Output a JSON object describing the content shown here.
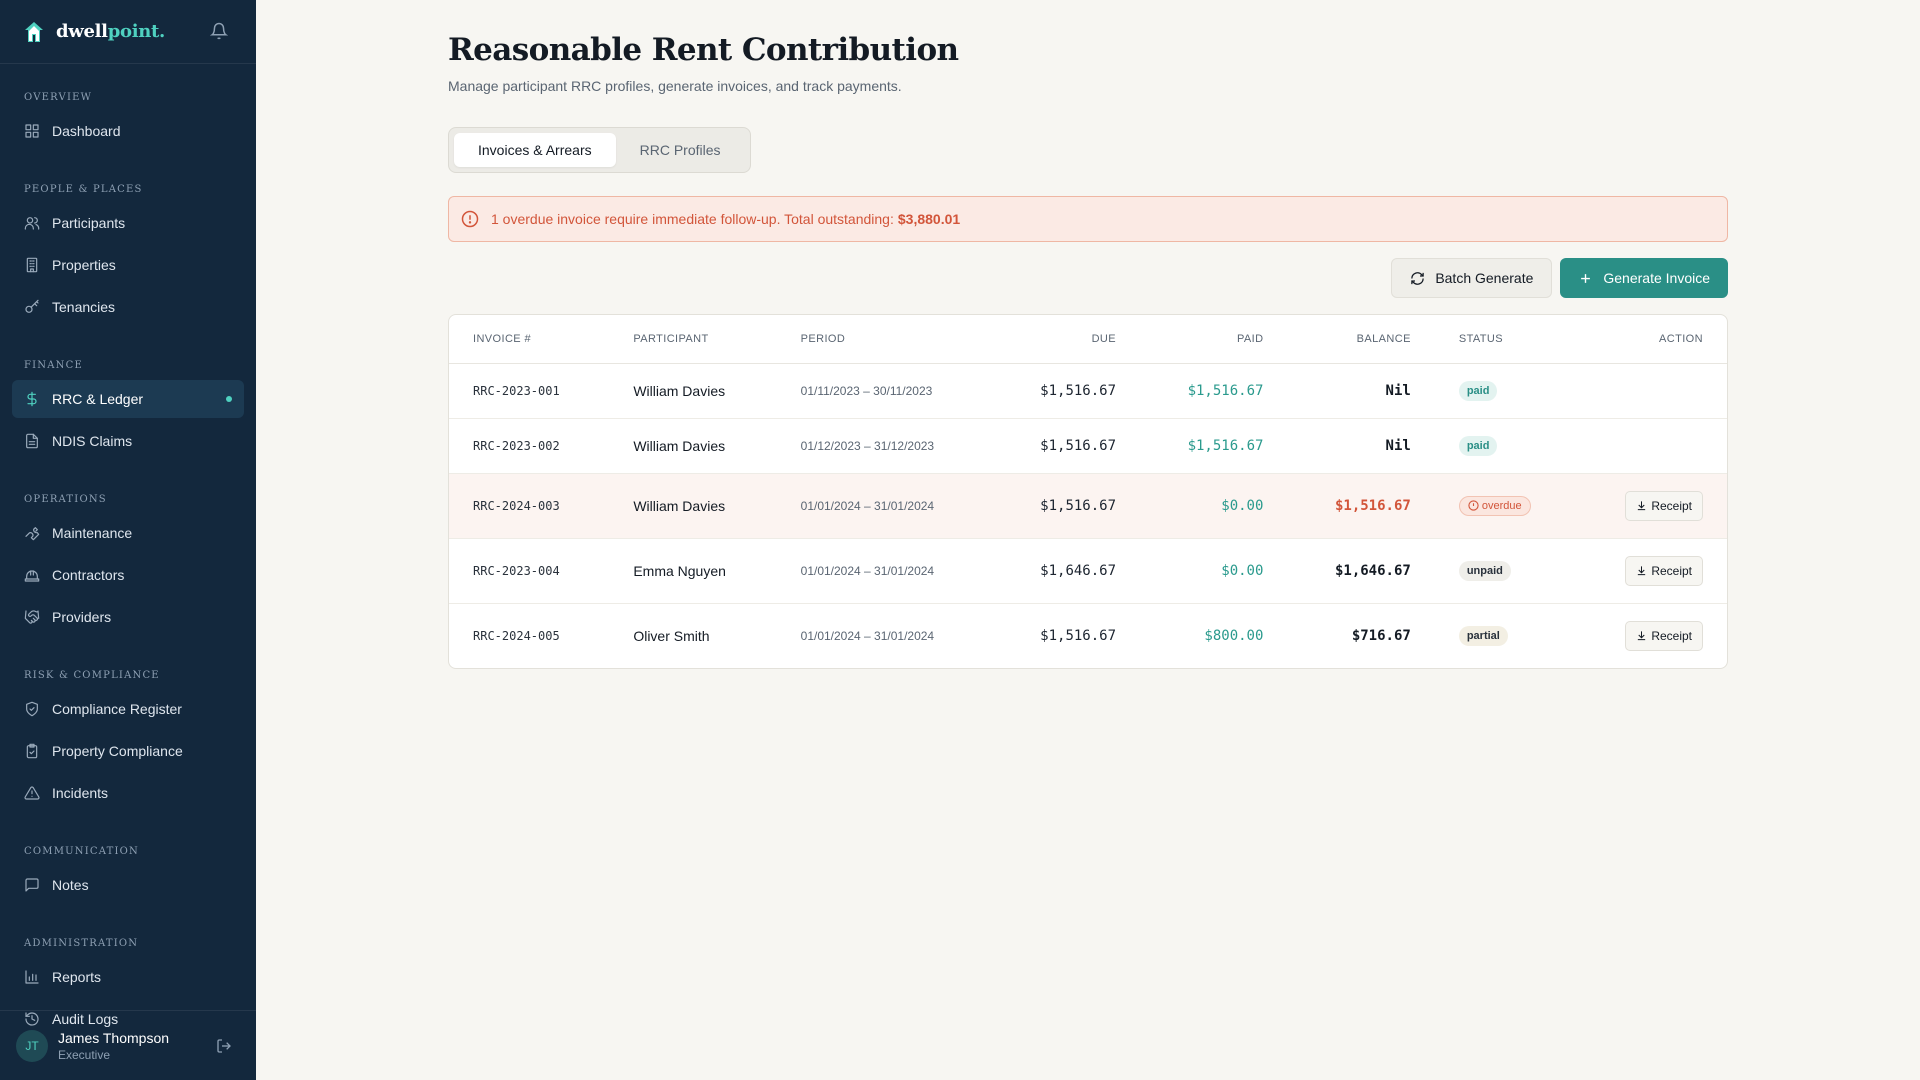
{
  "brand": {
    "name_part1": "dwell",
    "name_part2": "point."
  },
  "sidebar": {
    "sections": [
      {
        "label": "OVERVIEW",
        "items": [
          {
            "label": "Dashboard",
            "icon": "dashboard-icon"
          }
        ]
      },
      {
        "label": "PEOPLE & PLACES",
        "items": [
          {
            "label": "Participants",
            "icon": "users-icon"
          },
          {
            "label": "Properties",
            "icon": "building-icon"
          },
          {
            "label": "Tenancies",
            "icon": "key-icon"
          }
        ]
      },
      {
        "label": "FINANCE",
        "items": [
          {
            "label": "RRC & Ledger",
            "icon": "dollar-icon",
            "active": true
          },
          {
            "label": "NDIS Claims",
            "icon": "document-icon"
          }
        ]
      },
      {
        "label": "OPERATIONS",
        "items": [
          {
            "label": "Maintenance",
            "icon": "wrench-icon"
          },
          {
            "label": "Contractors",
            "icon": "hardhat-icon"
          },
          {
            "label": "Providers",
            "icon": "handshake-icon"
          }
        ]
      },
      {
        "label": "RISK & COMPLIANCE",
        "items": [
          {
            "label": "Compliance Register",
            "icon": "shield-check-icon"
          },
          {
            "label": "Property Compliance",
            "icon": "clipboard-check-icon"
          },
          {
            "label": "Incidents",
            "icon": "warning-icon"
          }
        ]
      },
      {
        "label": "COMMUNICATION",
        "items": [
          {
            "label": "Notes",
            "icon": "message-icon"
          }
        ]
      },
      {
        "label": "ADMINISTRATION",
        "items": [
          {
            "label": "Reports",
            "icon": "bar-chart-icon"
          },
          {
            "label": "Audit Logs",
            "icon": "history-icon"
          }
        ]
      }
    ]
  },
  "user": {
    "initials": "JT",
    "name": "James Thompson",
    "role": "Executive"
  },
  "page": {
    "title": "Reasonable Rent Contribution",
    "subtitle": "Manage participant RRC profiles, generate invoices, and track payments."
  },
  "tabs": [
    {
      "label": "Invoices & Arrears",
      "active": true
    },
    {
      "label": "RRC Profiles",
      "active": false
    }
  ],
  "alert": {
    "text": "1 overdue invoice require immediate follow-up. Total outstanding:",
    "amount": "$3,880.01"
  },
  "actions": {
    "batch_label": "Batch Generate",
    "generate_label": "Generate Invoice"
  },
  "table": {
    "headers": [
      "INVOICE #",
      "PARTICIPANT",
      "PERIOD",
      "DUE",
      "PAID",
      "BALANCE",
      "STATUS",
      "ACTION"
    ],
    "rows": [
      {
        "invoice": "RRC-2023-001",
        "participant": "William Davies",
        "period": "01/11/2023 – 30/11/2023",
        "due": "$1,516.67",
        "paid": "$1,516.67",
        "balance": "Nil",
        "status": "paid",
        "action": ""
      },
      {
        "invoice": "RRC-2023-002",
        "participant": "William Davies",
        "period": "01/12/2023 – 31/12/2023",
        "due": "$1,516.67",
        "paid": "$1,516.67",
        "balance": "Nil",
        "status": "paid",
        "action": ""
      },
      {
        "invoice": "RRC-2024-003",
        "participant": "William Davies",
        "period": "01/01/2024 – 31/01/2024",
        "due": "$1,516.67",
        "paid": "$0.00",
        "balance": "$1,516.67",
        "status": "overdue",
        "action": "Receipt"
      },
      {
        "invoice": "RRC-2023-004",
        "participant": "Emma Nguyen",
        "period": "01/01/2024 – 31/01/2024",
        "due": "$1,646.67",
        "paid": "$0.00",
        "balance": "$1,646.67",
        "status": "unpaid",
        "action": "Receipt"
      },
      {
        "invoice": "RRC-2024-005",
        "participant": "Oliver Smith",
        "period": "01/01/2024 – 31/01/2024",
        "due": "$1,516.67",
        "paid": "$800.00",
        "balance": "$716.67",
        "status": "partial",
        "action": "Receipt"
      }
    ]
  },
  "colors": {
    "sidebar_bg": "#13283d",
    "accent": "#2a8f86",
    "accent_light": "#4fd1c0",
    "danger": "#d2553a"
  }
}
